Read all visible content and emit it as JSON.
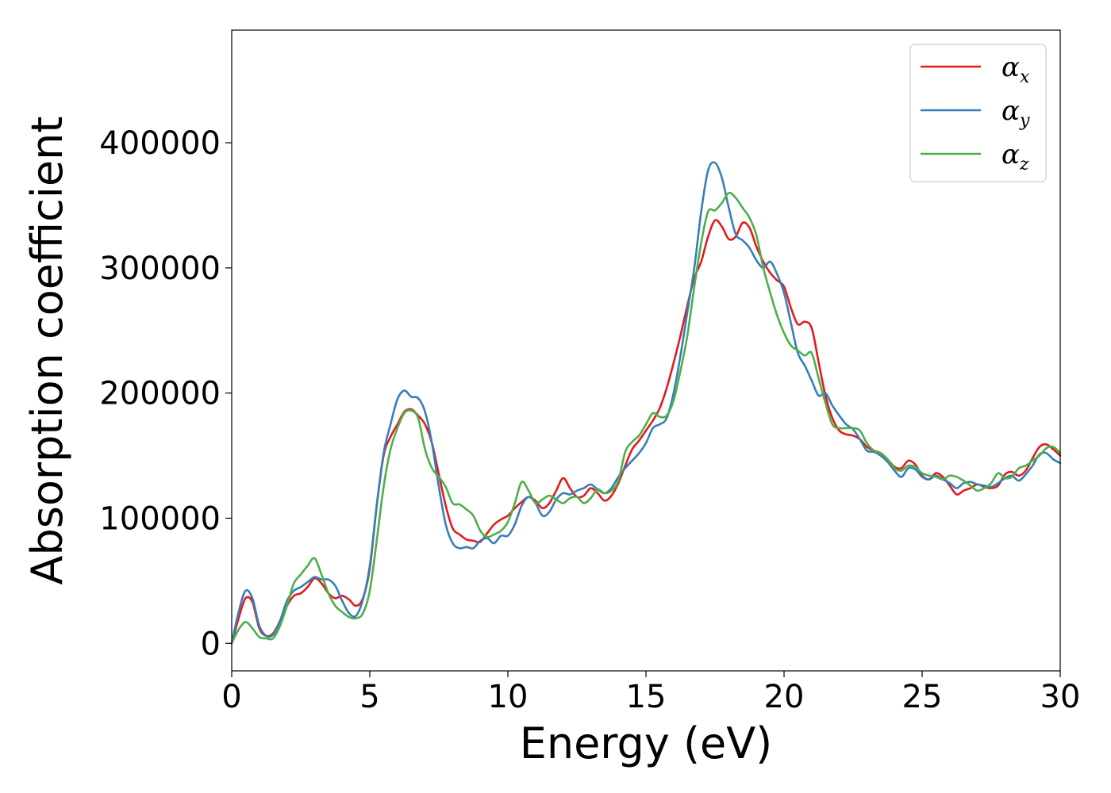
{
  "chart_data": {
    "type": "line",
    "xlabel": "Energy (eV)",
    "ylabel": "Absorption coefficient",
    "xlim": [
      0,
      30
    ],
    "ylim": [
      -22000,
      490000
    ],
    "xticks": [
      0,
      5,
      10,
      15,
      20,
      25,
      30
    ],
    "xtick_labels": [
      "0",
      "5",
      "10",
      "15",
      "20",
      "25",
      "30"
    ],
    "yticks": [
      0,
      100000,
      200000,
      300000,
      400000
    ],
    "ytick_labels": [
      "0",
      "100000",
      "200000",
      "300000",
      "400000"
    ],
    "grid": false,
    "legend_position": "top-right",
    "x": [
      0,
      0.25,
      0.5,
      0.75,
      1.0,
      1.25,
      1.5,
      1.75,
      2.0,
      2.25,
      2.5,
      2.75,
      3.0,
      3.25,
      3.5,
      3.75,
      4.0,
      4.25,
      4.5,
      4.75,
      5.0,
      5.25,
      5.5,
      5.75,
      6.0,
      6.25,
      6.5,
      6.75,
      7.0,
      7.25,
      7.5,
      7.75,
      8.0,
      8.25,
      8.5,
      8.75,
      9.0,
      9.25,
      9.5,
      9.75,
      10.0,
      10.25,
      10.5,
      10.75,
      11.0,
      11.25,
      11.5,
      11.75,
      12.0,
      12.25,
      12.5,
      12.75,
      13.0,
      13.25,
      13.5,
      13.75,
      14.0,
      14.25,
      14.5,
      14.75,
      15.0,
      15.25,
      15.5,
      15.75,
      16.0,
      16.25,
      16.5,
      16.75,
      17.0,
      17.25,
      17.5,
      17.75,
      18.0,
      18.25,
      18.5,
      18.75,
      19.0,
      19.25,
      19.5,
      19.75,
      20.0,
      20.25,
      20.5,
      20.75,
      21.0,
      21.25,
      21.5,
      21.75,
      22.0,
      22.25,
      22.5,
      22.75,
      23.0,
      23.25,
      23.5,
      23.75,
      24.0,
      24.25,
      24.5,
      24.75,
      25.0,
      25.25,
      25.5,
      25.75,
      26.0,
      26.25,
      26.5,
      26.75,
      27.0,
      27.25,
      27.5,
      27.75,
      28.0,
      28.25,
      28.5,
      28.75,
      29.0,
      29.25,
      29.5,
      29.75,
      30.0
    ],
    "series": [
      {
        "name": "αx",
        "label_main": "α",
        "label_sub": "x",
        "color": "#e41a1c",
        "values": [
          0,
          20000,
          36000,
          33000,
          12000,
          6000,
          8000,
          18000,
          30000,
          38000,
          40000,
          45000,
          52000,
          48000,
          40000,
          36000,
          38000,
          35000,
          30000,
          36000,
          60000,
          110000,
          150000,
          165000,
          175000,
          185000,
          187000,
          182000,
          175000,
          160000,
          135000,
          110000,
          92000,
          87000,
          83000,
          82000,
          81000,
          88000,
          95000,
          99000,
          102000,
          108000,
          113000,
          117000,
          114000,
          108000,
          112000,
          122000,
          132000,
          124000,
          117000,
          118000,
          124000,
          120000,
          114000,
          118000,
          128000,
          142000,
          155000,
          162000,
          170000,
          178000,
          188000,
          204000,
          224000,
          246000,
          270000,
          292000,
          305000,
          325000,
          338000,
          333000,
          323000,
          325000,
          336000,
          332000,
          317000,
          305000,
          296000,
          290000,
          285000,
          268000,
          255000,
          257000,
          252000,
          225000,
          198000,
          180000,
          170000,
          167000,
          166000,
          163000,
          157000,
          154000,
          152000,
          147000,
          141000,
          140000,
          146000,
          143000,
          134000,
          131000,
          136000,
          133000,
          126000,
          119000,
          122000,
          124000,
          127000,
          125000,
          124000,
          126000,
          135000,
          137000,
          134000,
          138000,
          148000,
          157000,
          159000,
          155000,
          150000
        ]
      },
      {
        "name": "αy",
        "label_main": "α",
        "label_sub": "y",
        "color": "#377eb8",
        "values": [
          0,
          25000,
          42000,
          36000,
          14000,
          6000,
          7000,
          18000,
          34000,
          42000,
          45000,
          49000,
          53000,
          51000,
          51000,
          46000,
          34000,
          24000,
          22000,
          35000,
          62000,
          110000,
          152000,
          175000,
          195000,
          202000,
          197000,
          196000,
          185000,
          160000,
          125000,
          95000,
          80000,
          76000,
          77000,
          76000,
          82000,
          84000,
          80000,
          86000,
          86000,
          95000,
          110000,
          117000,
          112000,
          102000,
          105000,
          115000,
          120000,
          119000,
          122000,
          124000,
          127000,
          123000,
          120000,
          124000,
          133000,
          140000,
          146000,
          152000,
          160000,
          172000,
          175000,
          180000,
          200000,
          230000,
          265000,
          300000,
          345000,
          378000,
          384000,
          372000,
          348000,
          327000,
          322000,
          316000,
          306000,
          300000,
          305000,
          295000,
          280000,
          256000,
          232000,
          222000,
          210000,
          198000,
          200000,
          190000,
          182000,
          175000,
          171000,
          163000,
          154000,
          153000,
          150000,
          145000,
          138000,
          133000,
          140000,
          139000,
          133000,
          131000,
          134000,
          131000,
          128000,
          124000,
          128000,
          129000,
          127000,
          126000,
          125000,
          128000,
          132000,
          134000,
          130000,
          135000,
          142000,
          151000,
          152000,
          147000,
          144000
        ]
      },
      {
        "name": "αz",
        "label_main": "α",
        "label_sub": "z",
        "color": "#4daf4a",
        "values": [
          0,
          11000,
          17000,
          12000,
          5000,
          4000,
          4000,
          14000,
          30000,
          48000,
          55000,
          62000,
          68000,
          55000,
          40000,
          30000,
          25000,
          21000,
          20000,
          24000,
          42000,
          82000,
          125000,
          155000,
          172000,
          184000,
          186000,
          180000,
          155000,
          140000,
          133000,
          125000,
          112000,
          111000,
          107000,
          102000,
          90000,
          85000,
          87000,
          90000,
          97000,
          112000,
          129000,
          122000,
          112000,
          115000,
          118000,
          115000,
          112000,
          116000,
          117000,
          112000,
          116000,
          123000,
          120000,
          122000,
          130000,
          153000,
          161000,
          166000,
          175000,
          184000,
          181000,
          182000,
          194000,
          218000,
          246000,
          285000,
          320000,
          345000,
          346000,
          352000,
          360000,
          356000,
          348000,
          340000,
          326000,
          300000,
          280000,
          262000,
          248000,
          238000,
          234000,
          230000,
          232000,
          212000,
          192000,
          175000,
          172000,
          172000,
          172000,
          170000,
          160000,
          154000,
          152000,
          147000,
          140000,
          138000,
          142000,
          141000,
          136000,
          134000,
          133000,
          131000,
          134000,
          133000,
          130000,
          126000,
          122000,
          124000,
          128000,
          136000,
          132000,
          133000,
          140000,
          142000,
          146000,
          150000,
          156000,
          157000,
          152000
        ]
      }
    ]
  }
}
